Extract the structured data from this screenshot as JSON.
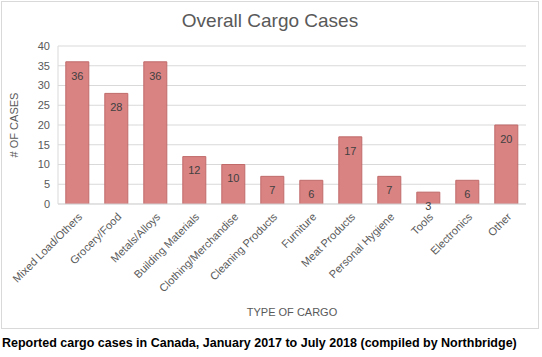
{
  "chart_data": {
    "type": "bar",
    "title": "Overall Cargo Cases",
    "caption": "Reported cargo cases in Canada, January 2017 to July 2018 (compiled by Northbridge)",
    "x_label": "TYPE OF CARGO",
    "y_label": "# OF CASES",
    "categories": [
      "Mixed Load/Others",
      "Grocery/Food",
      "Metals/Alloys",
      "Building Materials",
      "Clothing/Merchandise",
      "Cleaning Products",
      "Furniture",
      "Meat Products",
      "Personal Hygiene",
      "Tools",
      "Electronics",
      "Other"
    ],
    "values": [
      36,
      28,
      36,
      12,
      10,
      7,
      6,
      17,
      7,
      3,
      6,
      20
    ],
    "color": "#d98383",
    "ylim": [
      0,
      40
    ],
    "yticks": [
      0,
      5,
      10,
      15,
      20,
      25,
      30,
      35,
      40
    ],
    "grid": true,
    "data_labels": true
  }
}
